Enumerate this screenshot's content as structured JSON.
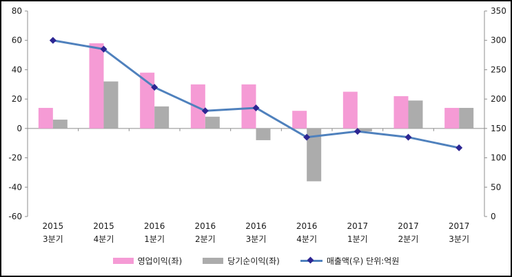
{
  "figure": {
    "background": "#ffffff",
    "border_color": "#000000",
    "axis_color": "#8c8c8c",
    "text_color": "#1a1a1a"
  },
  "chart_data": {
    "type": "bar",
    "title": "",
    "grid": false,
    "legend_position": "bottom",
    "categories": [
      [
        "2015",
        "3분기"
      ],
      [
        "2015",
        "4분기"
      ],
      [
        "2016",
        "1분기"
      ],
      [
        "2016",
        "2분기"
      ],
      [
        "2016",
        "3분기"
      ],
      [
        "2016",
        "4분기"
      ],
      [
        "2017",
        "1분기"
      ],
      [
        "2017",
        "2분기"
      ],
      [
        "2017",
        "3분기"
      ]
    ],
    "series": [
      {
        "name": "영업이익(좌)",
        "type": "bar",
        "axis": "left",
        "color": "#F59BD5",
        "values": [
          14,
          58,
          38,
          30,
          30,
          12,
          25,
          22,
          14
        ]
      },
      {
        "name": "당기순이익(좌)",
        "type": "bar",
        "axis": "left",
        "color": "#ACACAC",
        "values": [
          6,
          32,
          15,
          8,
          -8,
          -36,
          -2,
          19,
          14
        ]
      },
      {
        "name": "매출액(우) 단위:억원",
        "type": "line",
        "axis": "right",
        "color": "#4F81BD",
        "marker": "diamond",
        "marker_color": "#2D2693",
        "values": [
          300,
          285,
          220,
          180,
          185,
          135,
          145,
          135,
          117
        ]
      }
    ],
    "left_axis": {
      "min": -60,
      "max": 80,
      "step": 20,
      "ticks": [
        80,
        60,
        40,
        20,
        0,
        -20,
        -40,
        -60
      ]
    },
    "right_axis": {
      "min": 0,
      "max": 350,
      "step": 50,
      "ticks": [
        350,
        300,
        250,
        200,
        150,
        100,
        50,
        0
      ]
    }
  }
}
